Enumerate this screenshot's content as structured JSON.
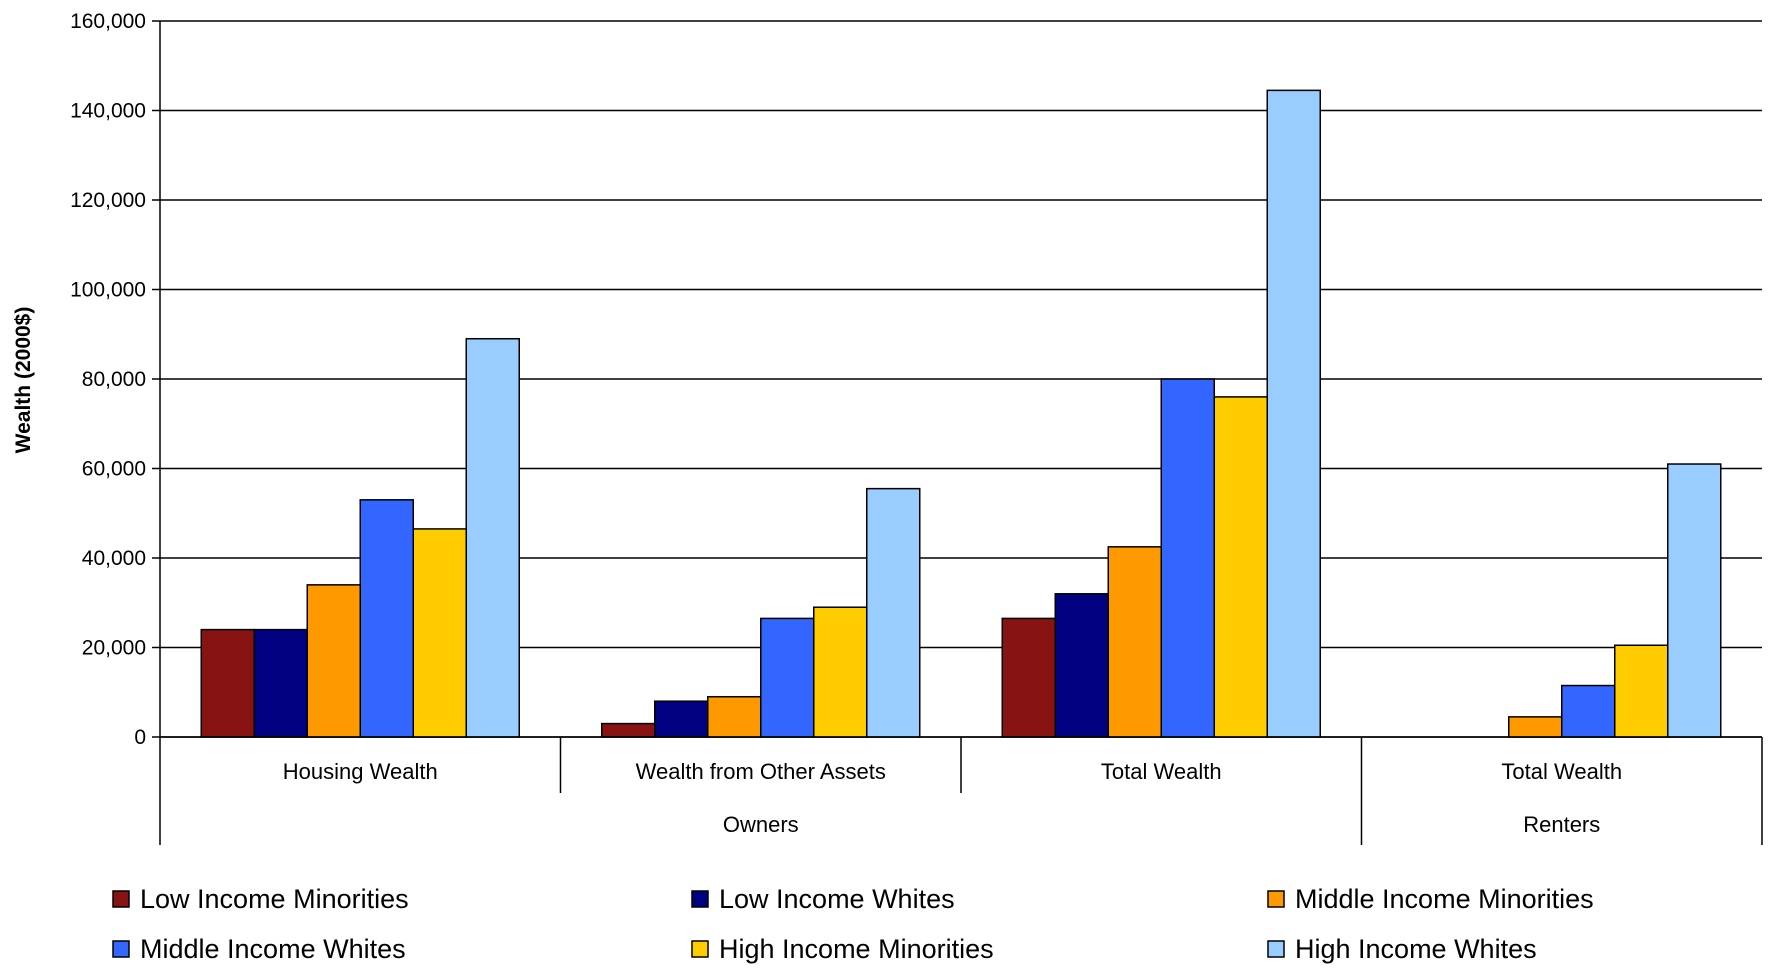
{
  "chart_data": {
    "type": "bar",
    "ylabel": "Wealth (2000$)",
    "xlabel": "",
    "title": "",
    "ylim": [
      0,
      160000
    ],
    "yticks": [
      0,
      20000,
      40000,
      60000,
      80000,
      100000,
      120000,
      140000,
      160000
    ],
    "ytick_labels": [
      "0",
      "20,000",
      "40,000",
      "60,000",
      "80,000",
      "100,000",
      "120,000",
      "140,000",
      "160,000"
    ],
    "categories": [
      "Housing Wealth",
      "Wealth from Other Assets",
      "Total Wealth",
      "Total Wealth"
    ],
    "groups": [
      {
        "label": "Owners",
        "categories": [
          0,
          1,
          2
        ]
      },
      {
        "label": "Renters",
        "categories": [
          3
        ]
      }
    ],
    "grid": true,
    "legend_position": "bottom",
    "series": [
      {
        "name": "Low Income Minorities",
        "color": "#871313",
        "values": [
          24000,
          3000,
          26500,
          0
        ]
      },
      {
        "name": "Low Income Whites",
        "color": "#000080",
        "values": [
          24000,
          8000,
          32000,
          0
        ]
      },
      {
        "name": "Middle Income Minorities",
        "color": "#FF9900",
        "values": [
          34000,
          9000,
          42500,
          4500
        ]
      },
      {
        "name": "Middle Income Whites",
        "color": "#3366FF",
        "values": [
          53000,
          26500,
          80000,
          11500
        ]
      },
      {
        "name": "High Income Minorities",
        "color": "#FFCC00",
        "values": [
          46500,
          29000,
          76000,
          20500
        ]
      },
      {
        "name": "High Income Whites",
        "color": "#99CCFF",
        "values": [
          89000,
          55500,
          144500,
          61000
        ]
      }
    ]
  }
}
